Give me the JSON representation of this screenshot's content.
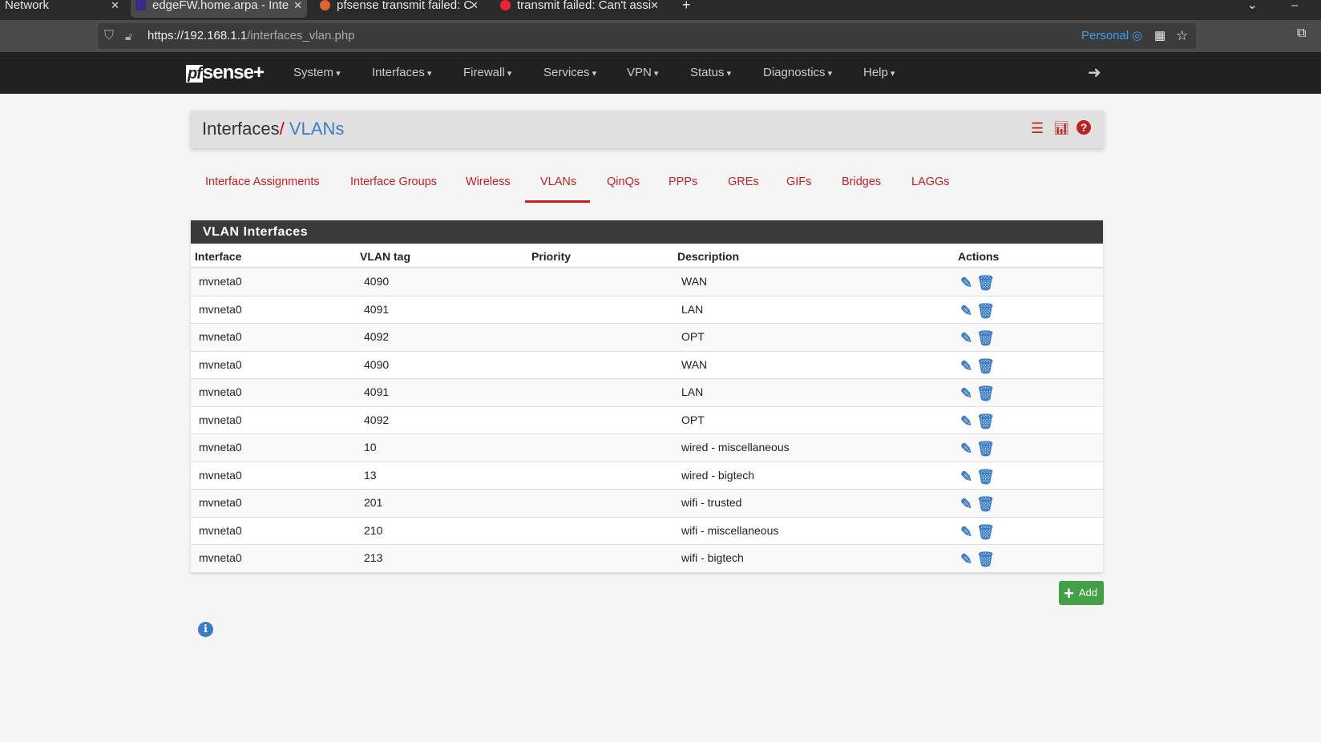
{
  "browser": {
    "tabs": [
      {
        "title": "Network"
      },
      {
        "title": "edgeFW.home.arpa - Inte"
      },
      {
        "title": "pfsense transmit failed: C"
      },
      {
        "title": "transmit failed: Can't assi"
      }
    ],
    "url_host": "https://192.168.1.1",
    "url_path": "/interfaces_vlan.php",
    "profile": "Personal"
  },
  "nav": {
    "logo": "pfsense+",
    "menu": [
      "System",
      "Interfaces",
      "Firewall",
      "Services",
      "VPN",
      "Status",
      "Diagnostics",
      "Help"
    ]
  },
  "breadcrumb": {
    "parent": "Interfaces",
    "sep": "/",
    "current": "VLANs"
  },
  "subtabs": [
    "Interface Assignments",
    "Interface Groups",
    "Wireless",
    "VLANs",
    "QinQs",
    "PPPs",
    "GREs",
    "GIFs",
    "Bridges",
    "LAGGs"
  ],
  "active_subtab": "VLANs",
  "table": {
    "title": "VLAN Interfaces",
    "columns": [
      "Interface",
      "VLAN tag",
      "Priority",
      "Description",
      "Actions"
    ],
    "rows": [
      {
        "iface": "mvneta0",
        "tag": "4090",
        "priority": "",
        "desc": "WAN"
      },
      {
        "iface": "mvneta0",
        "tag": "4091",
        "priority": "",
        "desc": "LAN"
      },
      {
        "iface": "mvneta0",
        "tag": "4092",
        "priority": "",
        "desc": "OPT"
      },
      {
        "iface": "mvneta0",
        "tag": "4090",
        "priority": "",
        "desc": "WAN"
      },
      {
        "iface": "mvneta0",
        "tag": "4091",
        "priority": "",
        "desc": "LAN"
      },
      {
        "iface": "mvneta0",
        "tag": "4092",
        "priority": "",
        "desc": "OPT"
      },
      {
        "iface": "mvneta0",
        "tag": "10",
        "priority": "",
        "desc": "wired - miscellaneous"
      },
      {
        "iface": "mvneta0",
        "tag": "13",
        "priority": "",
        "desc": "wired - bigtech"
      },
      {
        "iface": "mvneta0",
        "tag": "201",
        "priority": "",
        "desc": "wifi - trusted"
      },
      {
        "iface": "mvneta0",
        "tag": "210",
        "priority": "",
        "desc": "wifi - miscellaneous"
      },
      {
        "iface": "mvneta0",
        "tag": "213",
        "priority": "",
        "desc": "wifi - bigtech"
      }
    ]
  },
  "add_label": "Add",
  "colors": {
    "accent": "#c81e1e",
    "link": "#3b7dc4",
    "add": "#43a047",
    "header": "#3a3a3a"
  }
}
